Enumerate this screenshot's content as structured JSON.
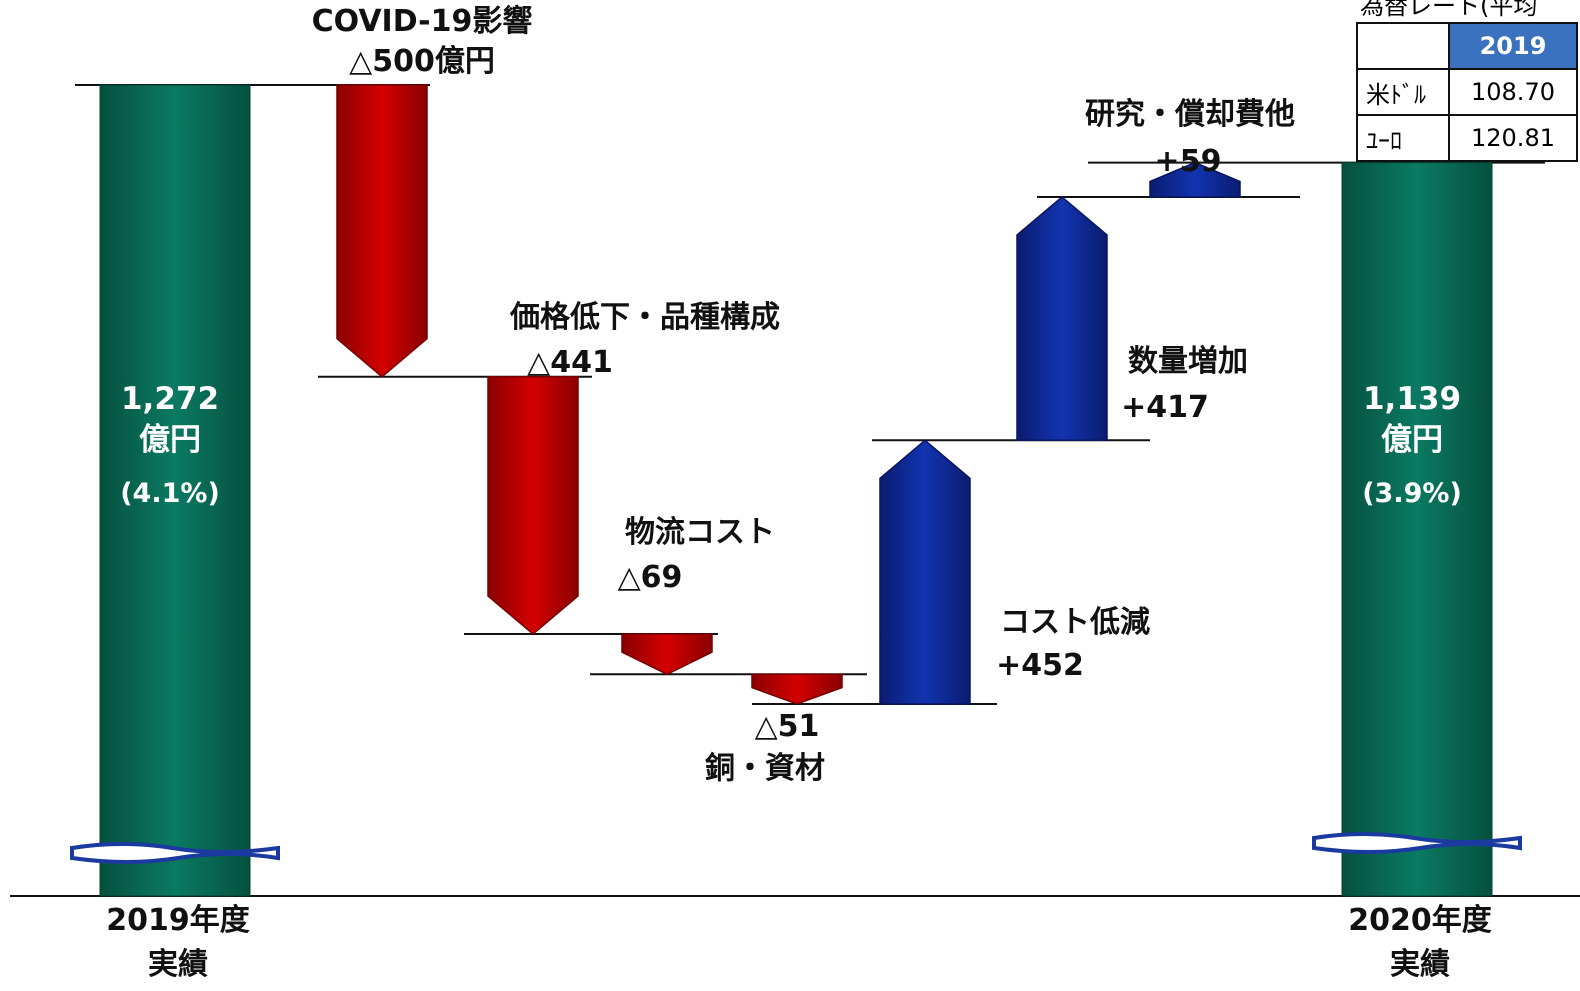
{
  "chart_data": {
    "type": "waterfall",
    "categories": [
      "2019年度\n実績",
      "COVID-19影響",
      "価格低下・品種構成",
      "物流コスト",
      "銅・資材",
      "コスト低減",
      "数量増加",
      "研究・償却費他",
      "2020年度\n実績"
    ],
    "measure": [
      "total",
      "relative",
      "relative",
      "relative",
      "relative",
      "relative",
      "relative",
      "relative",
      "total"
    ],
    "values": [
      1272,
      -500,
      -441,
      -69,
      -51,
      452,
      417,
      59,
      1139
    ],
    "value_labels": [
      "1,272",
      "△500億円",
      "△441",
      "△69",
      "△51",
      "+452",
      "+417",
      "+59",
      "1,139"
    ],
    "total_unit": "億円",
    "margins": [
      4.1,
      3.9
    ],
    "margin_labels": [
      "(4.1%)",
      "(3.9%)"
    ],
    "colors": {
      "total": "#0b7a62",
      "decrease": "#d30000",
      "increase": "#1234b0"
    }
  },
  "table": {
    "title": "為替レート(平均",
    "header": "2019",
    "rows": [
      [
        "米ﾄﾞﾙ",
        "108.70"
      ],
      [
        "ﾕｰﾛ",
        "120.81"
      ]
    ]
  }
}
